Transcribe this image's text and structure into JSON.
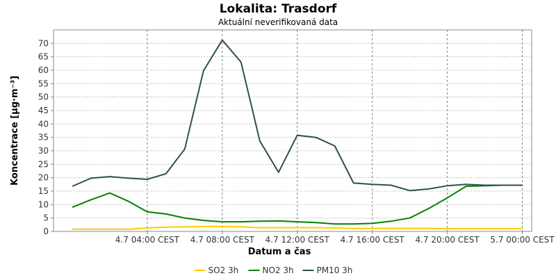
{
  "chart_data": {
    "type": "line",
    "title": "Lokalita: Trasdorf",
    "subtitle": "Aktuální neverifikovaná data",
    "xlabel": "Datum a čas",
    "ylabel": "Koncentrace [µg·m⁻³]",
    "ylim": [
      0,
      75
    ],
    "y_ticks": [
      0,
      5,
      10,
      15,
      20,
      25,
      30,
      35,
      40,
      45,
      50,
      55,
      60,
      65,
      70
    ],
    "xlim": [
      "3.7 23:00 CEST",
      "5.7 00:30 CEST"
    ],
    "x_tick_labels": [
      "4.7 04:00 CEST",
      "4.7 08:00 CEST",
      "4.7 12:00 CEST",
      "4.7 16:00 CEST",
      "4.7 20:00 CEST",
      "5.7 00:00 CEST"
    ],
    "x": [
      "4.7 00:00",
      "4.7 01:00",
      "4.7 02:00",
      "4.7 03:00",
      "4.7 04:00",
      "4.7 05:00",
      "4.7 06:00",
      "4.7 07:00",
      "4.7 08:00",
      "4.7 09:00",
      "4.7 10:00",
      "4.7 11:00",
      "4.7 12:00",
      "4.7 13:00",
      "4.7 14:00",
      "4.7 15:00",
      "4.7 16:00",
      "4.7 17:00",
      "4.7 18:00",
      "4.7 19:00",
      "4.7 20:00",
      "4.7 21:00",
      "4.7 22:00",
      "4.7 23:00",
      "5.7 00:00"
    ],
    "series": [
      {
        "name": "SO2 3h",
        "color": "#ffcc00",
        "values": [
          0.8,
          0.8,
          0.8,
          0.8,
          1.3,
          1.6,
          1.7,
          1.8,
          1.9,
          1.7,
          1.4,
          1.4,
          1.4,
          1.4,
          1.3,
          1.1,
          1.1,
          1.1,
          1.1,
          1.1,
          1.0,
          1.0,
          1.0,
          1.0,
          1.0
        ]
      },
      {
        "name": "NO2 3h",
        "color": "#008000",
        "values": [
          9.0,
          11.8,
          14.3,
          11.2,
          7.3,
          6.5,
          5.0,
          4.1,
          3.6,
          3.6,
          3.8,
          3.9,
          3.6,
          3.3,
          2.8,
          2.8,
          3.0,
          3.8,
          5.0,
          8.5,
          12.5,
          16.8,
          17.0,
          17.2,
          17.2
        ]
      },
      {
        "name": "PM10 3h",
        "color": "#2f4f4f",
        "values": [
          16.8,
          19.8,
          20.4,
          19.8,
          19.4,
          21.5,
          30.7,
          59.8,
          71.2,
          63.0,
          33.7,
          22.0,
          35.8,
          35.0,
          31.8,
          18.0,
          17.5,
          17.2,
          15.2,
          15.8,
          17.0,
          17.5,
          17.2,
          17.2,
          17.2
        ]
      }
    ],
    "grid": true,
    "legend_position": "bottom-center"
  }
}
